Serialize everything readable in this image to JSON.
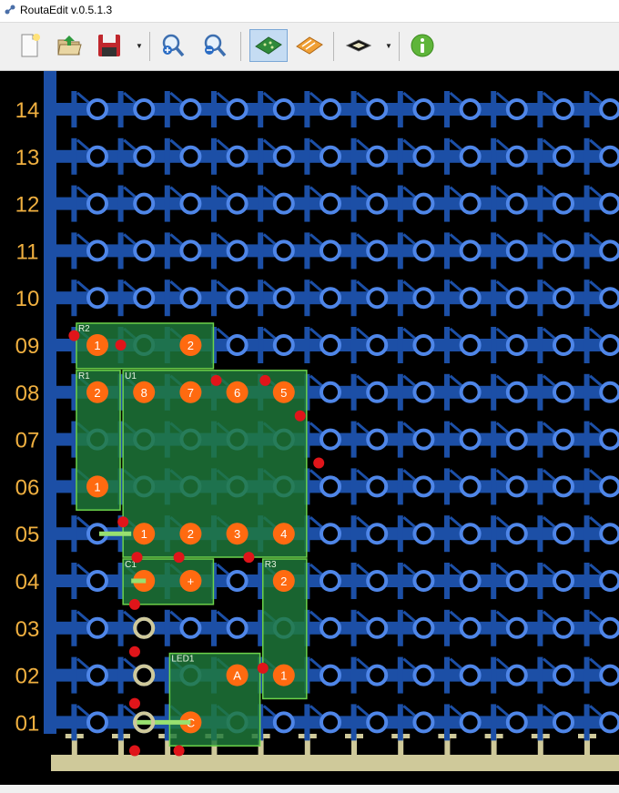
{
  "window": {
    "title": "RoutaEdit v.0.5.1.3"
  },
  "toolbar": {
    "buttons": [
      {
        "name": "new-file-button",
        "icon": "new-document-icon"
      },
      {
        "name": "open-file-button",
        "icon": "open-folder-icon"
      },
      {
        "name": "save-button",
        "icon": "floppy-disk-icon"
      },
      {
        "name": "zoom-in-button",
        "icon": "zoom-in-icon"
      },
      {
        "name": "zoom-out-button",
        "icon": "zoom-out-icon"
      },
      {
        "name": "pcb-view-button",
        "icon": "green-board-icon",
        "active": true
      },
      {
        "name": "wire-view-button",
        "icon": "orange-board-icon"
      },
      {
        "name": "layer-button",
        "icon": "layers-icon"
      },
      {
        "name": "info-button",
        "icon": "info-icon"
      }
    ]
  },
  "board": {
    "row_labels": [
      "14",
      "13",
      "12",
      "11",
      "10",
      "09",
      "08",
      "07",
      "06",
      "05",
      "04",
      "03",
      "02",
      "01"
    ],
    "colors": {
      "background": "#000000",
      "track": "#1c4fa6",
      "pad_ring": "#4f86e8",
      "component_fill": "#1e7a3a",
      "component_outline": "#6cd24a",
      "pin_orange": "#ff6a10",
      "label_gold": "#f0b040",
      "cut_red": "#e0151a",
      "wire_beige": "#cfc99a"
    },
    "components": [
      {
        "ref": "R2",
        "pins": [
          "1",
          "2"
        ]
      },
      {
        "ref": "R1",
        "pins": [
          "2",
          "1"
        ]
      },
      {
        "ref": "U1",
        "pins": [
          "8",
          "7",
          "6",
          "5",
          "1",
          "2",
          "3",
          "4"
        ]
      },
      {
        "ref": "C1",
        "pins": [
          "-",
          "+"
        ]
      },
      {
        "ref": "R3",
        "pins": [
          "2",
          "1"
        ]
      },
      {
        "ref": "LED1",
        "pins": [
          "A",
          "C"
        ]
      }
    ]
  }
}
